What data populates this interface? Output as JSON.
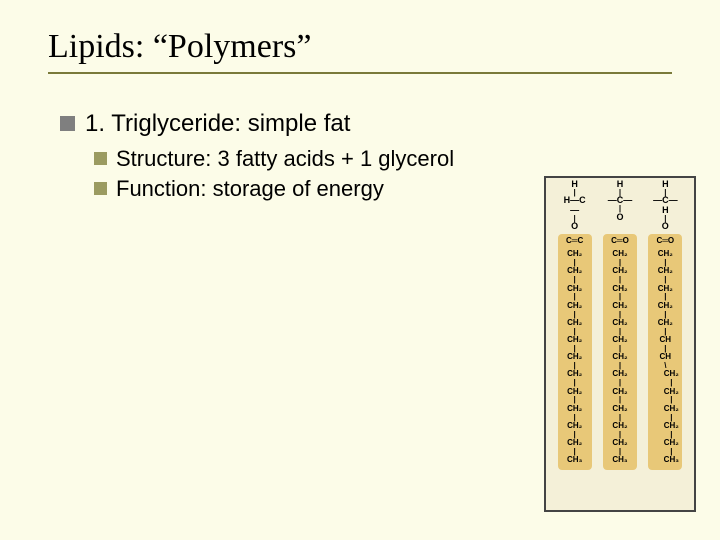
{
  "slide": {
    "title": "Lipids: “Polymers”",
    "background_color": "#fcfce8",
    "underline_color": "#7a7a3a",
    "title_font": "Times New Roman",
    "title_fontsize": 34,
    "body_fontsize_l1": 24,
    "body_fontsize_l2": 22,
    "bullets": {
      "l1": {
        "text": "1. Triglyceride: simple fat",
        "marker_color": "#7f7f7f"
      },
      "l2": [
        {
          "text": "Structure: 3 fatty acids + 1 glycerol",
          "marker_color": "#9b9b60"
        },
        {
          "text": "Function: storage of energy",
          "marker_color": "#9b9b60"
        }
      ]
    }
  },
  "diagram": {
    "type": "infographic",
    "border_color": "#444444",
    "background_color": "#f4f0d8",
    "chain_colors": [
      "#e8c878",
      "#e8c878",
      "#e8c878"
    ],
    "glycerol": {
      "cols": [
        {
          "top": "H",
          "mid": "C",
          "left": "H",
          "bottom": "O"
        },
        {
          "top": "H",
          "mid": "C",
          "bottom": "O"
        },
        {
          "top": "H",
          "mid": "C",
          "right": "H",
          "bottom": "O"
        }
      ]
    },
    "chains": [
      {
        "top": "C═C",
        "units": [
          "CH₂",
          "CH₂",
          "CH₂",
          "CH₂",
          "CH₂",
          "CH₂",
          "CH₂",
          "CH₂",
          "CH₂",
          "CH₂",
          "CH₂",
          "CH₂",
          "CH₃"
        ]
      },
      {
        "top": "C═O",
        "units": [
          "CH₂",
          "CH₂",
          "CH₂",
          "CH₂",
          "CH₂",
          "CH₂",
          "CH₂",
          "CH₂",
          "CH₂",
          "CH₂",
          "CH₂",
          "CH₂",
          "CH₃"
        ]
      },
      {
        "top": "C═O",
        "units": [
          "CH₂",
          "CH₂",
          "CH₂",
          "CH₂",
          "CH₂",
          "CH",
          "CH"
        ],
        "bent_units": [
          "CH₂",
          "CH₂",
          "CH₂",
          "CH₂",
          "CH₂",
          "CH₃"
        ]
      }
    ]
  }
}
